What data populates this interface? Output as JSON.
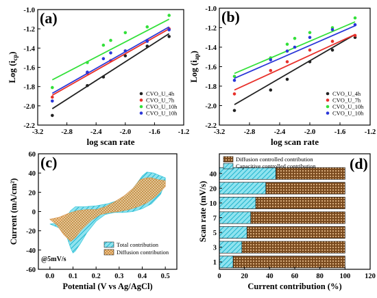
{
  "figure": {
    "background": "#ffffff"
  },
  "chart_data": [
    {
      "panel": "(a)",
      "type": "scatter",
      "xlabel": "log scan rate",
      "ylabel_main": "Log (i",
      "ylabel_sub": "cp",
      "ylabel_end": ")",
      "xlim": [
        -3.2,
        -1.2
      ],
      "ylim": [
        -2.2,
        -1.0
      ],
      "xticks": [
        -3.2,
        -2.8,
        -2.4,
        -2.0,
        -1.6,
        -1.2
      ],
      "xtick_labels": [
        "-3.2",
        "-2.8",
        "-2.4",
        "-2.0",
        "-1.6",
        "-1.2"
      ],
      "yticks": [
        -2.2,
        -2.0,
        -1.8,
        -1.6,
        -1.4,
        -1.2,
        -1.0
      ],
      "ytick_labels": [
        "-2.2",
        "-2.0",
        "-1.8",
        "-1.6",
        "-1.4",
        "-1.2",
        "-1.0"
      ],
      "legend_position": "bottom-right",
      "series": [
        {
          "name": "CVO_U_4h",
          "color": "#222222",
          "x": [
            -3.0,
            -2.52,
            -2.3,
            -2.0,
            -1.7,
            -1.4
          ],
          "y": [
            -2.1,
            -1.79,
            -1.7,
            -1.48,
            -1.38,
            -1.28
          ],
          "fit": [
            [
              -3.0,
              -2.03
            ],
            [
              -1.4,
              -1.25
            ]
          ]
        },
        {
          "name": "CVO_U_7h",
          "color": "#e8302a",
          "x": [
            -3.0,
            -2.52,
            -2.2,
            -2.0,
            -1.7,
            -1.4
          ],
          "y": [
            -1.91,
            -1.66,
            -1.53,
            -1.43,
            -1.32,
            -1.2
          ],
          "fit": [
            [
              -3.0,
              -1.89
            ],
            [
              -1.4,
              -1.2
            ]
          ]
        },
        {
          "name": "CVO_U_10h",
          "color": "#33e03a",
          "x": [
            -3.0,
            -2.52,
            -2.3,
            -2.2,
            -2.0,
            -1.7,
            -1.4
          ],
          "y": [
            -1.81,
            -1.55,
            -1.37,
            -1.32,
            -1.24,
            -1.18,
            -1.06
          ],
          "fit": [
            [
              -3.0,
              -1.73
            ],
            [
              -1.4,
              -1.1
            ]
          ]
        },
        {
          "name": "CVO_U_10h",
          "color": "#2a36d8",
          "x": [
            -3.0,
            -2.52,
            -2.3,
            -2.2,
            -2.0,
            -1.7,
            -1.4
          ],
          "y": [
            -1.95,
            -1.65,
            -1.51,
            -1.45,
            -1.43,
            -1.33,
            -1.21
          ],
          "fit": [
            [
              -3.0,
              -1.87
            ],
            [
              -1.4,
              -1.18
            ]
          ]
        }
      ]
    },
    {
      "panel": "(b)",
      "type": "scatter",
      "xlabel": "log scan rate",
      "ylabel_main": "Log (i",
      "ylabel_sub": "ap",
      "ylabel_end": ")",
      "xlim": [
        -3.2,
        -1.2
      ],
      "ylim": [
        -2.2,
        -1.0
      ],
      "xticks": [
        -3.2,
        -2.8,
        -2.4,
        -2.0,
        -1.6,
        -1.2
      ],
      "xtick_labels": [
        "-3.2",
        "-2.8",
        "-2.4",
        "-2.0",
        "-1.6",
        "-1.2"
      ],
      "yticks": [
        -2.2,
        -2.0,
        -1.8,
        -1.6,
        -1.4,
        -1.2,
        -1.0
      ],
      "ytick_labels": [
        "-2.2",
        "-2.0",
        "-1.8",
        "-1.6",
        "-1.4",
        "-1.2",
        "-1.0"
      ],
      "legend_position": "bottom-right",
      "series": [
        {
          "name": "CVO_U_4h",
          "color": "#222222",
          "x": [
            -3.0,
            -2.52,
            -2.3,
            -2.0,
            -1.7,
            -1.4
          ],
          "y": [
            -2.05,
            -1.84,
            -1.73,
            -1.55,
            -1.43,
            -1.3
          ],
          "fit": [
            [
              -3.0,
              -1.99
            ],
            [
              -1.4,
              -1.27
            ]
          ]
        },
        {
          "name": "CVO_U_7h",
          "color": "#e8302a",
          "x": [
            -3.0,
            -2.52,
            -2.3,
            -2.0,
            -1.7,
            -1.4
          ],
          "y": [
            -1.88,
            -1.64,
            -1.55,
            -1.43,
            -1.34,
            -1.28
          ],
          "fit": [
            [
              -3.0,
              -1.84
            ],
            [
              -1.4,
              -1.27
            ]
          ]
        },
        {
          "name": "CVO_U_10h",
          "color": "#33e03a",
          "x": [
            -3.0,
            -2.52,
            -2.3,
            -2.2,
            -2.0,
            -1.7,
            -1.4
          ],
          "y": [
            -1.7,
            -1.51,
            -1.37,
            -1.31,
            -1.25,
            -1.2,
            -1.1
          ],
          "fit": [
            [
              -3.0,
              -1.67
            ],
            [
              -1.4,
              -1.14
            ]
          ]
        },
        {
          "name": "CVO_U_10h",
          "color": "#2a36d8",
          "x": [
            -3.0,
            -2.52,
            -2.3,
            -2.2,
            -2.0,
            -1.7,
            -1.4
          ],
          "y": [
            -1.74,
            -1.53,
            -1.44,
            -1.4,
            -1.3,
            -1.22,
            -1.17
          ],
          "fit": [
            [
              -3.0,
              -1.72
            ],
            [
              -1.4,
              -1.18
            ]
          ]
        }
      ]
    },
    {
      "panel": "(c)",
      "type": "area",
      "xlabel": "Potential (V vs Ag/AgCl)",
      "ylabel": "Current (mA/cm²)",
      "xlim": [
        -0.05,
        0.55
      ],
      "ylim": [
        -60,
        60
      ],
      "xticks": [
        0.0,
        0.1,
        0.2,
        0.3,
        0.4,
        0.5
      ],
      "xtick_labels": [
        "0.0",
        "0.1",
        "0.2",
        "0.3",
        "0.4",
        "0.5"
      ],
      "yticks": [
        -60,
        -40,
        -20,
        0,
        20,
        40,
        60
      ],
      "ytick_labels": [
        "-60",
        "-40",
        "-20",
        "0",
        "20",
        "40",
        "60"
      ],
      "annotation": "@5mV/s",
      "legend_position": "bottom-right",
      "series": [
        {
          "name": "Total contribution",
          "color": "#3ec8dc",
          "pattern": "hatch",
          "x": [
            0.0,
            0.04,
            0.07,
            0.09,
            0.11,
            0.15,
            0.2,
            0.25,
            0.3,
            0.34,
            0.37,
            0.4,
            0.42,
            0.45,
            0.48,
            0.5,
            0.5,
            0.48,
            0.44,
            0.4,
            0.36,
            0.32,
            0.28,
            0.24,
            0.2,
            0.16,
            0.13,
            0.11,
            0.1,
            0.09,
            0.07,
            0.04,
            0.0
          ],
          "y": [
            -13,
            -12,
            -6,
            1,
            5,
            5,
            6,
            8,
            12,
            18,
            27,
            37,
            41,
            40,
            37,
            35,
            31,
            18,
            8,
            3,
            0,
            -1,
            -1,
            -3,
            -10,
            -22,
            -34,
            -41,
            -43,
            -38,
            -24,
            -17,
            -13
          ]
        },
        {
          "name": "Diffusion contribution",
          "color": "#d4944a",
          "pattern": "crosshatch",
          "x": [
            0.0,
            0.04,
            0.08,
            0.12,
            0.16,
            0.2,
            0.24,
            0.28,
            0.32,
            0.36,
            0.39,
            0.42,
            0.44,
            0.47,
            0.5,
            0.5,
            0.46,
            0.42,
            0.38,
            0.34,
            0.3,
            0.26,
            0.22,
            0.18,
            0.14,
            0.11,
            0.09,
            0.06,
            0.03,
            0.0
          ],
          "y": [
            -8,
            -6,
            -2,
            1,
            2,
            2,
            5,
            10,
            16,
            24,
            33,
            35,
            35,
            33,
            32,
            26,
            16,
            9,
            5,
            2,
            0,
            -1,
            -3,
            -9,
            -18,
            -27,
            -31,
            -24,
            -14,
            -8
          ]
        }
      ]
    },
    {
      "panel": "(d)",
      "type": "bar",
      "orientation": "horizontal",
      "stacked": true,
      "xlabel": "Current contribution (%)",
      "ylabel": "Scan rate (mV/s)",
      "xlim": [
        0,
        120
      ],
      "xticks": [
        0,
        20,
        40,
        60,
        80,
        100,
        120
      ],
      "xtick_labels": [
        "0",
        "20",
        "40",
        "60",
        "80",
        "100",
        "120"
      ],
      "categories": [
        "1",
        "3",
        "5",
        "7",
        "10",
        "20",
        "40"
      ],
      "legend_position": "top-left",
      "series": [
        {
          "name": "Capacitive controlled contribution",
          "color": "#3ec8dc",
          "pattern": "hatch",
          "values": [
            11,
            18,
            22,
            25,
            29,
            37,
            45
          ]
        },
        {
          "name": "Diffusion controlled contribution",
          "color": "#a0622c",
          "pattern": "dots",
          "values": [
            89,
            82,
            78,
            75,
            71,
            63,
            55
          ]
        }
      ]
    }
  ]
}
